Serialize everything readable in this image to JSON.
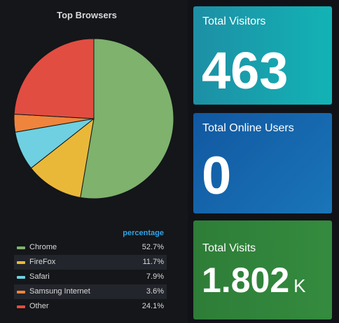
{
  "pie_panel": {
    "title": "Top Browsers",
    "legend_header": "percentage",
    "colors": [
      "#7eb26d",
      "#eab839",
      "#6ed0e0",
      "#ef843c",
      "#e24d42"
    ]
  },
  "chart_data": {
    "type": "pie",
    "title": "Top Browsers",
    "categories": [
      "Chrome",
      "FireFox",
      "Safari",
      "Samsung Internet",
      "Other"
    ],
    "values": [
      52.7,
      11.7,
      7.9,
      3.6,
      24.1
    ],
    "value_labels": [
      "52.7%",
      "11.7%",
      "7.9%",
      "3.6%",
      "24.1%"
    ],
    "legend_placement": "bottom"
  },
  "stats": {
    "visitors": {
      "title": "Total Visitors",
      "value": "463",
      "unit": ""
    },
    "online": {
      "title": "Total Online Users",
      "value": "0",
      "unit": ""
    },
    "visits": {
      "title": "Total Visits",
      "value": "1.802",
      "unit": "K"
    }
  }
}
